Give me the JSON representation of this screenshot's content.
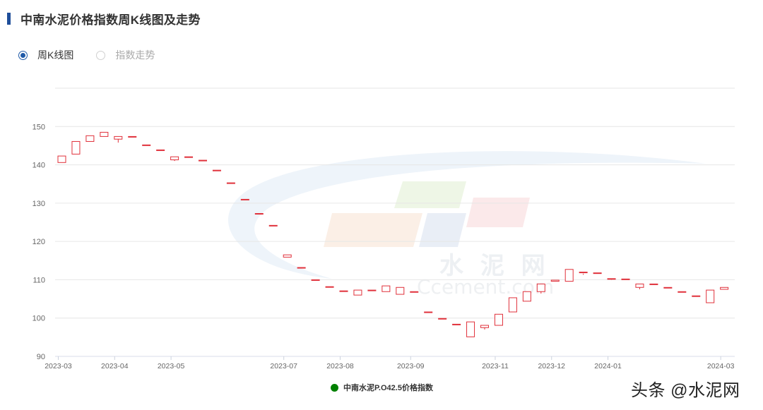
{
  "header": {
    "title": "中南水泥价格指数周K线图及走势",
    "accent_color": "#1f4e9a"
  },
  "view_toggle": {
    "options": [
      {
        "label": "周K线图",
        "selected": true
      },
      {
        "label": "指数走势",
        "selected": false
      }
    ]
  },
  "watermark": {
    "cn_text": "水 泥 网",
    "en_text": "Ccement.com"
  },
  "credit": "头条 @水泥网",
  "colors": {
    "up": "#e0303a",
    "down": "#008000",
    "grid": "#e6e6e6",
    "axis_text": "#666666"
  },
  "chart_data": {
    "type": "candlestick",
    "title": "中南水泥价格指数周K线图及走势",
    "xlabel": "",
    "ylabel": "",
    "ylim": [
      90,
      160
    ],
    "yticks": [
      90,
      100,
      110,
      120,
      130,
      140,
      150
    ],
    "xtick_labels": [
      {
        "label": "2023-03",
        "index": 0
      },
      {
        "label": "2023-04",
        "index": 4
      },
      {
        "label": "2023-05",
        "index": 8
      },
      {
        "label": "2023-07",
        "index": 16
      },
      {
        "label": "2023-08",
        "index": 20
      },
      {
        "label": "2023-09",
        "index": 25
      },
      {
        "label": "2023-11",
        "index": 31
      },
      {
        "label": "2023-12",
        "index": 35
      },
      {
        "label": "2024-01",
        "index": 39
      },
      {
        "label": "2024-03",
        "index": 47
      }
    ],
    "grid": true,
    "legend": {
      "position": "bottom-center",
      "entries": [
        "中南水泥P.O42.5价格指数"
      ]
    },
    "series": [
      {
        "name": "中南水泥P.O42.5价格指数",
        "ohlc": [
          [
            140.6,
            142.3,
            140.6,
            142.3
          ],
          [
            142.8,
            146.1,
            142.8,
            146.1
          ],
          [
            146.1,
            147.6,
            146.1,
            147.6
          ],
          [
            147.4,
            148.5,
            146.9,
            146.9
          ],
          [
            146.7,
            147.4,
            145.8,
            147.4
          ],
          [
            147.4,
            147.4,
            145.2,
            145.2
          ],
          [
            145.2,
            145.2,
            143.6,
            143.6
          ],
          [
            143.9,
            143.9,
            142.8,
            142.8
          ],
          [
            141.3,
            142.1,
            141.0,
            142.1
          ],
          [
            142.1,
            142.1,
            141.2,
            141.2
          ],
          [
            141.2,
            141.2,
            138.6,
            138.6
          ],
          [
            138.6,
            138.6,
            135.5,
            135.5
          ],
          [
            135.3,
            135.3,
            131.0,
            131.0
          ],
          [
            131.0,
            131.0,
            127.5,
            127.5
          ],
          [
            127.3,
            127.3,
            124.0,
            124.0
          ],
          [
            124.2,
            124.2,
            119.8,
            119.8
          ],
          [
            115.9,
            116.5,
            114.5,
            114.5
          ],
          [
            113.2,
            113.2,
            111.3,
            111.3
          ],
          [
            110.0,
            110.0,
            108.2,
            108.2
          ],
          [
            108.2,
            108.2,
            107.1,
            107.1
          ],
          [
            107.1,
            107.1,
            106.2,
            106.2
          ],
          [
            106.0,
            107.3,
            106.0,
            107.3
          ],
          [
            107.3,
            107.3,
            106.4,
            106.4
          ],
          [
            106.9,
            108.4,
            106.2,
            106.2
          ],
          [
            106.2,
            108.0,
            106.2,
            108.0
          ],
          [
            106.9,
            106.9,
            101.7,
            101.7
          ],
          [
            101.6,
            101.6,
            99.9,
            99.9
          ],
          [
            99.9,
            99.9,
            98.6,
            98.6
          ],
          [
            98.4,
            98.4,
            96.6,
            96.6
          ],
          [
            95.1,
            99.0,
            95.1,
            97.0
          ],
          [
            97.5,
            98.1,
            97.0,
            98.1
          ],
          [
            98.1,
            101.0,
            98.1,
            101.0
          ],
          [
            101.6,
            105.3,
            101.6,
            105.3
          ],
          [
            104.4,
            106.9,
            104.4,
            106.9
          ],
          [
            106.9,
            108.9,
            106.4,
            108.9
          ],
          [
            109.6,
            109.9,
            108.9,
            108.9
          ],
          [
            109.6,
            112.7,
            109.6,
            112.7
          ],
          [
            112.0,
            112.0,
            111.3,
            111.6
          ],
          [
            111.8,
            111.8,
            110.3,
            110.3
          ],
          [
            110.3,
            110.3,
            110.0,
            110.1
          ],
          [
            110.2,
            110.2,
            108.7,
            108.7
          ],
          [
            108.0,
            108.9,
            107.5,
            108.9
          ],
          [
            108.9,
            108.9,
            108.4,
            108.4
          ],
          [
            108.0,
            108.0,
            106.7,
            106.7
          ],
          [
            106.9,
            106.9,
            105.6,
            105.6
          ],
          [
            105.8,
            105.8,
            104.4,
            104.4
          ],
          [
            104.0,
            107.3,
            104.0,
            107.3
          ],
          [
            107.5,
            108.0,
            107.5,
            108.0
          ]
        ],
        "ohlc_format": [
          "open",
          "close",
          "low",
          "high"
        ]
      }
    ]
  }
}
